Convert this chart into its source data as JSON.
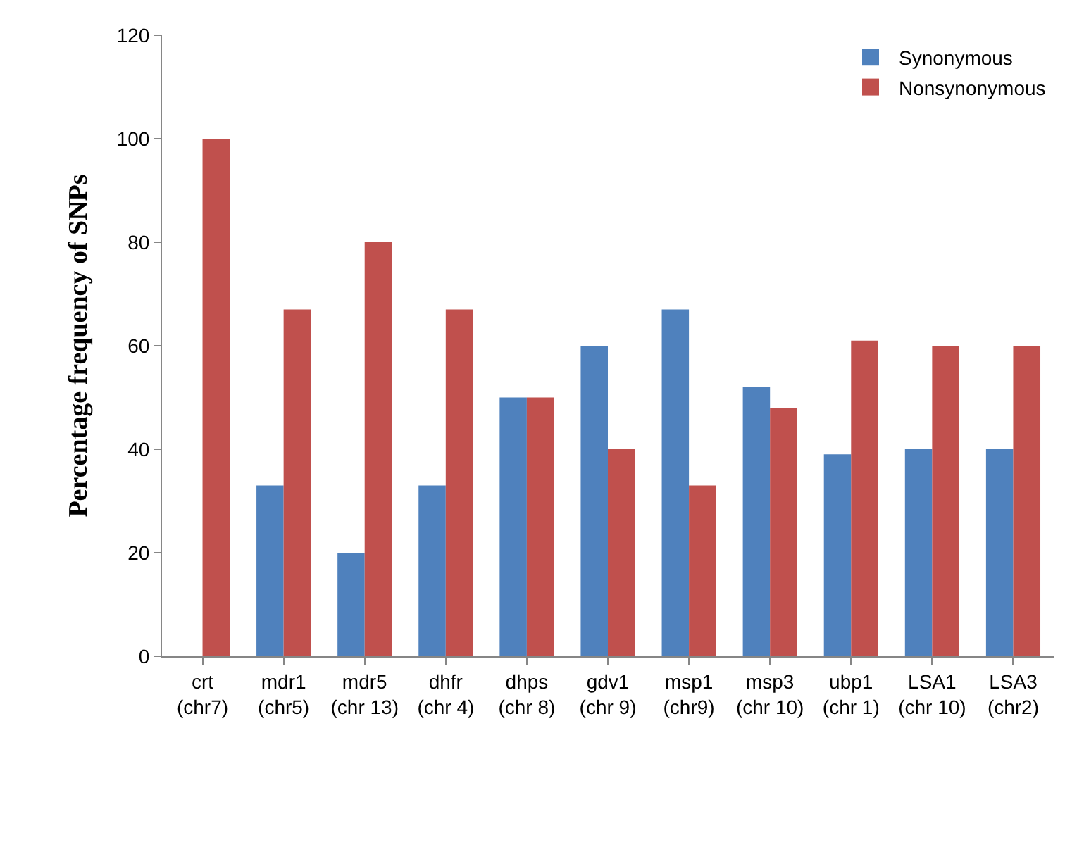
{
  "chart_data": {
    "type": "bar",
    "ylabel": "Percentage frequency of SNPs",
    "categories": [
      "crt\n(chr7)",
      "mdr1\n(chr5)",
      "mdr5\n(chr 13)",
      "dhfr\n(chr 4)",
      "dhps\n(chr 8)",
      "gdv1\n(chr 9)",
      "msp1\n(chr9)",
      "msp3\n(chr 10)",
      "ubp1\n(chr 1)",
      "LSA1\n(chr 10)",
      "LSA3\n(chr2)"
    ],
    "series": [
      {
        "name": "Synonymous",
        "color": "#4f81bd",
        "values": [
          0,
          33,
          20,
          33,
          50,
          60,
          67,
          52,
          39,
          40,
          40
        ]
      },
      {
        "name": "Nonsynonymous",
        "color": "#c0504d",
        "values": [
          100,
          67,
          80,
          67,
          50,
          40,
          33,
          48,
          61,
          60,
          60
        ]
      }
    ],
    "ylim": [
      0,
      120
    ],
    "yticks": [
      0,
      20,
      40,
      60,
      80,
      100,
      120
    ],
    "legend": "top right"
  }
}
